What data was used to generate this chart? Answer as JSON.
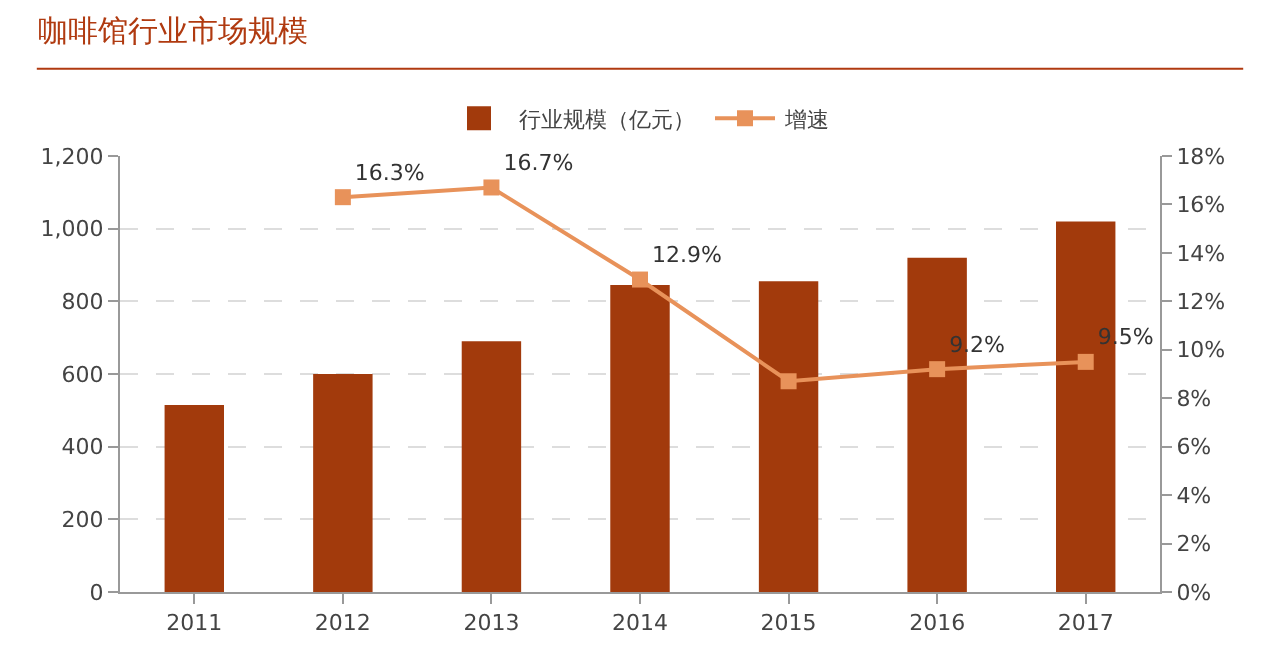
{
  "chart_data": {
    "type": "bar",
    "title": "咖啡馆行业市场规模",
    "categories": [
      "2011",
      "2012",
      "2013",
      "2014",
      "2015",
      "2016",
      "2017"
    ],
    "series": [
      {
        "name": "行业规模（亿元）",
        "color": "#a23a0c",
        "values": [
          515,
          600,
          690,
          845,
          855,
          920,
          1020
        ]
      },
      {
        "name": "增速",
        "type": "line",
        "axis": "y2",
        "color": "#e8925a",
        "marker": "square",
        "values": [
          null,
          16.3,
          16.7,
          12.9,
          8.7,
          9.2,
          9.5
        ],
        "value_labels": [
          null,
          "16.3%",
          "16.7%",
          "12.9%",
          null,
          "9.2%",
          "9.5%"
        ]
      }
    ],
    "ylim": [
      0,
      1200
    ],
    "yticks": [
      {
        "value": 0,
        "label": "0"
      },
      {
        "value": 200,
        "label": "200"
      },
      {
        "value": 400,
        "label": "400"
      },
      {
        "value": 600,
        "label": "600"
      },
      {
        "value": 800,
        "label": "800"
      },
      {
        "value": 1000,
        "label": "1,000"
      },
      {
        "value": 1200,
        "label": "1,200"
      }
    ],
    "y2lim": [
      0,
      18
    ],
    "y2ticks": [
      {
        "value": 0,
        "label": "0%"
      },
      {
        "value": 2,
        "label": "2%"
      },
      {
        "value": 4,
        "label": "4%"
      },
      {
        "value": 6,
        "label": "6%"
      },
      {
        "value": 8,
        "label": "8%"
      },
      {
        "value": 10,
        "label": "10%"
      },
      {
        "value": 12,
        "label": "12%"
      },
      {
        "value": 14,
        "label": "14%"
      },
      {
        "value": 16,
        "label": "16%"
      },
      {
        "value": 18,
        "label": "18%"
      }
    ],
    "grid": "y",
    "legend": "top"
  }
}
